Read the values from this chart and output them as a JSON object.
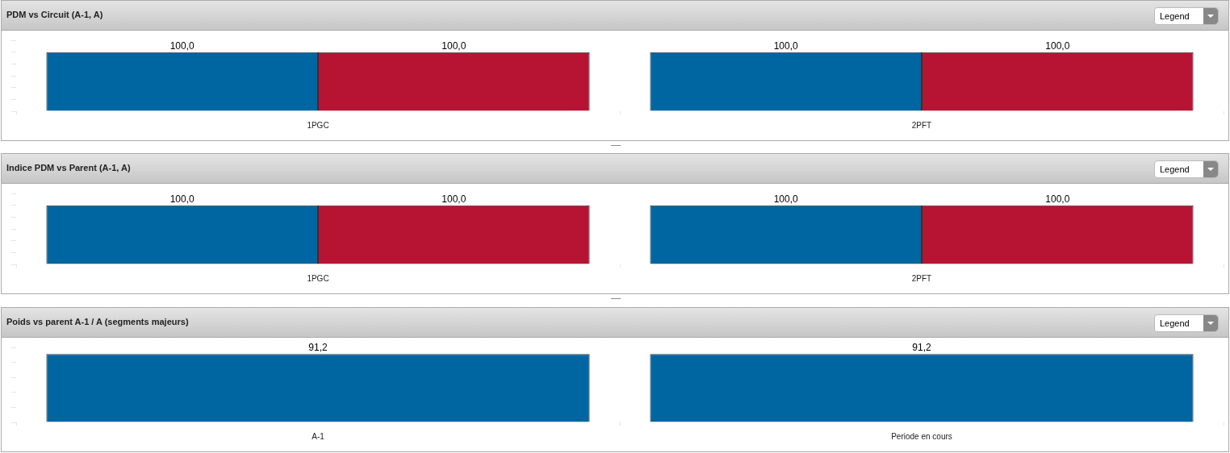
{
  "chart_data": [
    {
      "type": "bar",
      "title": "PDM vs Circuit (A-1, A)",
      "categories": [
        "1PGC",
        "2PFT"
      ],
      "series": [
        {
          "color": "#0066a1",
          "values": [
            100,
            100
          ],
          "value_labels": [
            "100,0",
            "100,0"
          ]
        },
        {
          "color": "#b71434",
          "values": [
            100,
            100
          ],
          "value_labels": [
            "100,0",
            "100,0"
          ]
        }
      ],
      "tick_labels": "x",
      "annotations": [
        "Legend"
      ]
    },
    {
      "type": "bar",
      "title": "Indice PDM vs Parent (A-1, A)",
      "categories": [
        "1PGC",
        "2PFT"
      ],
      "series": [
        {
          "color": "#0066a1",
          "values": [
            100,
            100
          ],
          "value_labels": [
            "100,0",
            "100,0"
          ]
        },
        {
          "color": "#b71434",
          "values": [
            100,
            100
          ],
          "value_labels": [
            "100,0",
            "100,0"
          ]
        }
      ],
      "tick_labels": "x",
      "annotations": [
        "Legend"
      ]
    },
    {
      "type": "bar",
      "title": "Poids vs parent A-1 / A (segments majeurs)",
      "categories": [
        "A-1",
        "Periode en cours"
      ],
      "series": [
        {
          "color": "#0066a1",
          "values": [
            91.2,
            91.2
          ],
          "value_labels": [
            "91,2",
            "91,2"
          ]
        }
      ],
      "tick_labels": "x",
      "annotations": [
        "Legend"
      ]
    }
  ]
}
